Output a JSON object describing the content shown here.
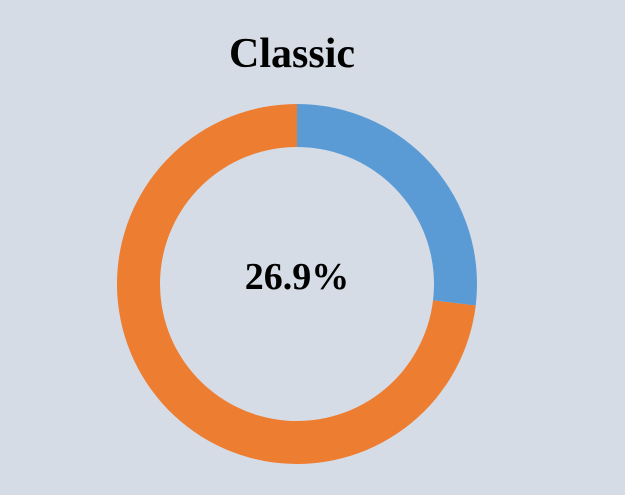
{
  "chart_data": {
    "type": "pie",
    "title": "Classic",
    "center_label": "26.9%",
    "slices": [
      {
        "value": 26.9,
        "color": "#5B9BD5"
      },
      {
        "value": 73.1,
        "color": "#ED7D31"
      }
    ]
  }
}
